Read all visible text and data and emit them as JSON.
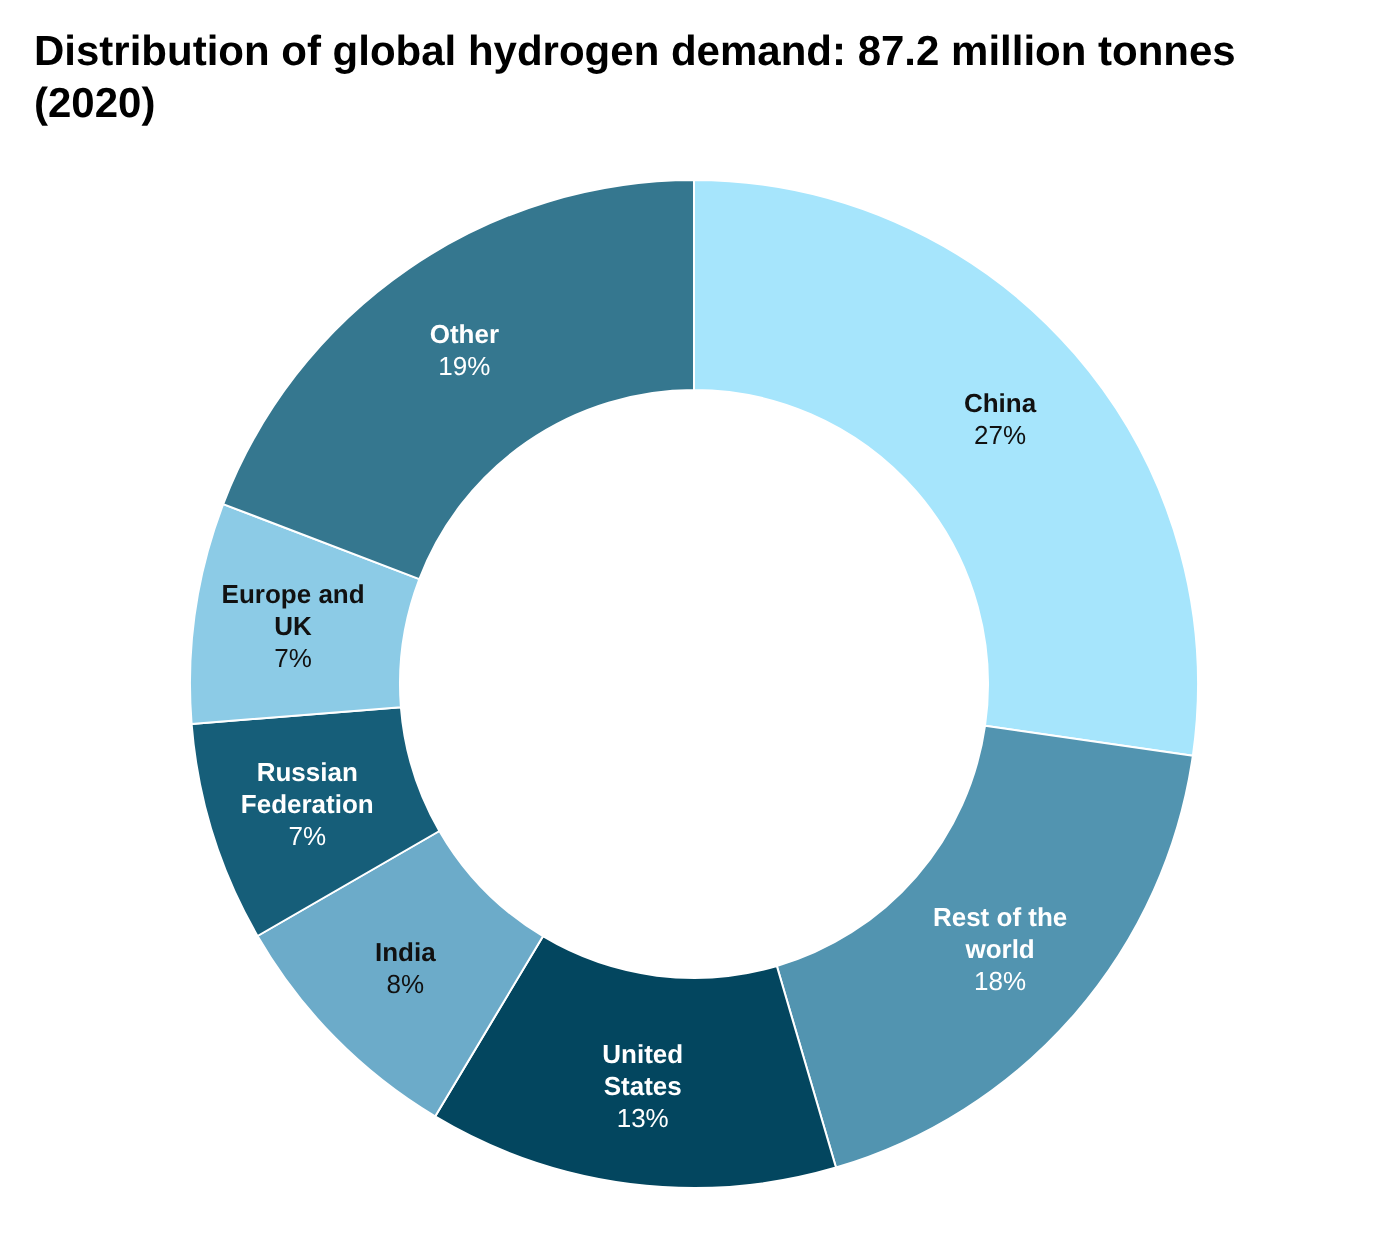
{
  "chart_data": {
    "type": "donut",
    "title": "Distribution of global hydrogen demand: 87.2 million tonnes (2020)",
    "categories": [
      "China",
      "Rest of the world",
      "United States",
      "India",
      "Russian Federation",
      "Europe and UK",
      "Other"
    ],
    "values": [
      27,
      18,
      13,
      8,
      7,
      7,
      19
    ],
    "value_labels": [
      "27%",
      "18%",
      "13%",
      "8%",
      "7%",
      "7%",
      "19%"
    ],
    "colors": [
      "#a6e5fc",
      "#5294b0",
      "#03465f",
      "#6cabc9",
      "#165e79",
      "#8ccbe6",
      "#35778f"
    ],
    "legend": false
  }
}
